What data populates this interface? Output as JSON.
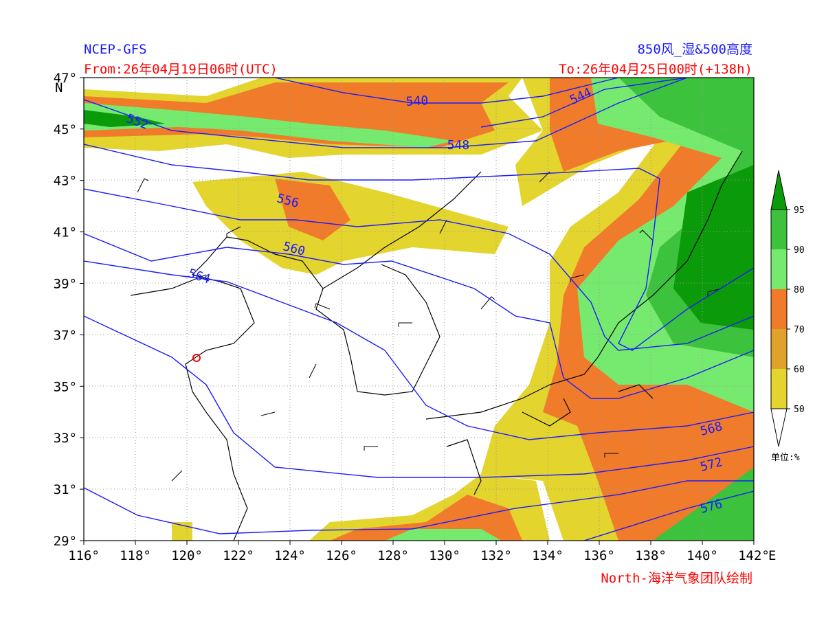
{
  "header": {
    "model": "NCEP-GFS",
    "from": "From:26年04月19日06时(UTC)",
    "product": "850风_湿&500高度",
    "to": "To:26年04月25日00时(+138h)"
  },
  "footer": {
    "credit": "North-海洋气象团队绘制"
  },
  "map": {
    "lon_labels": [
      "116°",
      "118°",
      "120°",
      "122°",
      "124°",
      "126°",
      "128°",
      "130°",
      "132°",
      "134°",
      "136°",
      "138°",
      "140°",
      "142°"
    ],
    "lon_unit": "E",
    "lat_labels": [
      "29°",
      "31°",
      "33°",
      "35°",
      "37°",
      "39°",
      "41°",
      "43°",
      "45°",
      "47°"
    ],
    "lat_unit": "N",
    "contour_labels": [
      "540",
      "544",
      "548",
      "552",
      "556",
      "560",
      "564",
      "568",
      "572",
      "576"
    ]
  },
  "colorbar": {
    "labels": [
      "50",
      "60",
      "70",
      "80",
      "90",
      "95"
    ],
    "unit": "单位:%"
  }
}
